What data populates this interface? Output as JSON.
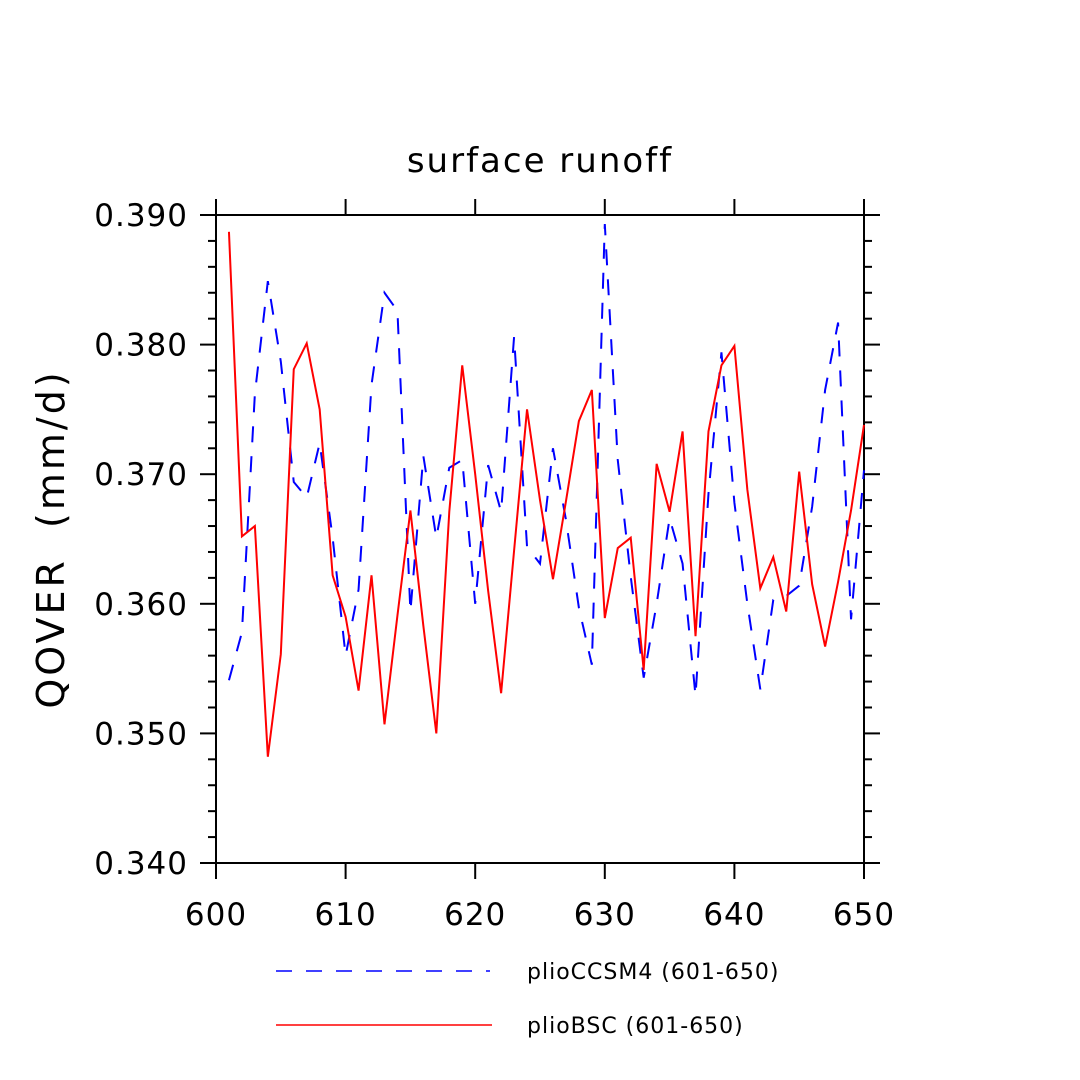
{
  "chart_data": {
    "type": "line",
    "title": "surface runoff",
    "xlabel": "",
    "ylabel": "QOVER  (mm/d)",
    "xlim": [
      600,
      650
    ],
    "ylim": [
      0.34,
      0.39
    ],
    "xticks": [
      600,
      610,
      620,
      630,
      640,
      650
    ],
    "xtick_labels": [
      "600",
      "610",
      "620",
      "630",
      "640",
      "650"
    ],
    "yticks": [
      0.34,
      0.35,
      0.36,
      0.37,
      0.38,
      0.39
    ],
    "ytick_labels": [
      "0.340",
      "0.350",
      "0.360",
      "0.370",
      "0.380",
      "0.390"
    ],
    "legend_position": "bottom",
    "series": [
      {
        "name": "plioCCSM4 (601-650)",
        "color": "#0000ff",
        "dash": "dashed",
        "x": [
          601,
          602,
          603,
          604,
          605,
          606,
          607,
          608,
          609,
          610,
          611,
          612,
          613,
          614,
          615,
          616,
          617,
          618,
          619,
          620,
          621,
          622,
          623,
          624,
          625,
          626,
          627,
          628,
          629,
          630,
          631,
          632,
          633,
          634,
          635,
          636,
          637,
          638,
          639,
          640,
          641,
          642,
          643,
          644,
          645,
          646,
          647,
          648,
          649,
          650
        ],
        "values": [
          0.3541,
          0.3578,
          0.3762,
          0.3849,
          0.3787,
          0.3694,
          0.3682,
          0.3724,
          0.3651,
          0.356,
          0.3611,
          0.3769,
          0.384,
          0.3826,
          0.3594,
          0.3714,
          0.3651,
          0.3705,
          0.3711,
          0.36,
          0.3707,
          0.3671,
          0.3806,
          0.3644,
          0.3631,
          0.372,
          0.3665,
          0.3597,
          0.3553,
          0.3893,
          0.3711,
          0.3621,
          0.3543,
          0.36,
          0.3666,
          0.3631,
          0.3529,
          0.3685,
          0.3794,
          0.3678,
          0.36,
          0.3534,
          0.3603,
          0.3606,
          0.3614,
          0.3675,
          0.3765,
          0.3817,
          0.3588,
          0.3703
        ]
      },
      {
        "name": "plioBSC (601-650)",
        "color": "#ff0000",
        "dash": "solid",
        "x": [
          601,
          602,
          603,
          604,
          605,
          606,
          607,
          608,
          609,
          610,
          611,
          612,
          613,
          614,
          615,
          616,
          617,
          618,
          619,
          620,
          621,
          622,
          623,
          624,
          625,
          626,
          627,
          628,
          629,
          630,
          631,
          632,
          633,
          634,
          635,
          636,
          637,
          638,
          639,
          640,
          641,
          642,
          643,
          644,
          645,
          646,
          647,
          648,
          649,
          650
        ],
        "values": [
          0.3887,
          0.3652,
          0.366,
          0.3482,
          0.3561,
          0.3781,
          0.3801,
          0.375,
          0.3622,
          0.359,
          0.3533,
          0.3622,
          0.3507,
          0.3591,
          0.3672,
          0.3583,
          0.35,
          0.3671,
          0.3784,
          0.37,
          0.361,
          0.3531,
          0.3641,
          0.375,
          0.368,
          0.3619,
          0.3679,
          0.3741,
          0.3765,
          0.3589,
          0.3643,
          0.3651,
          0.3549,
          0.3708,
          0.3671,
          0.3733,
          0.3575,
          0.3733,
          0.3784,
          0.3799,
          0.3688,
          0.3612,
          0.3636,
          0.3594,
          0.3702,
          0.3615,
          0.3567,
          0.3617,
          0.3672,
          0.3738
        ]
      }
    ]
  }
}
